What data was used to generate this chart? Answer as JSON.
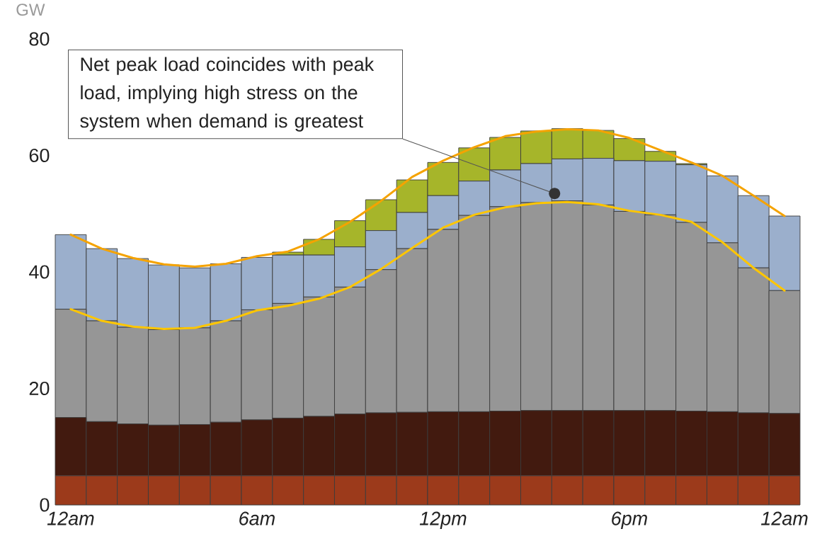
{
  "chart_data": {
    "type": "bar",
    "stacked": true,
    "ylabel": "GW",
    "categories": [
      "12am",
      null,
      null,
      null,
      null,
      null,
      "6am",
      null,
      null,
      null,
      null,
      null,
      "12pm",
      null,
      null,
      null,
      null,
      null,
      "6pm",
      null,
      null,
      null,
      null,
      "12am"
    ],
    "ylim": [
      0,
      80
    ],
    "yticks": [
      0,
      20,
      40,
      60,
      80
    ],
    "series": [
      {
        "color": "#9c3a1b",
        "values": [
          5,
          5,
          5,
          5,
          5,
          5,
          5,
          5,
          5,
          5,
          5,
          5,
          5,
          5,
          5,
          5,
          5,
          5,
          5,
          5,
          5,
          5,
          5,
          5
        ]
      },
      {
        "color": "#421a0f",
        "values": [
          10.0,
          9.3,
          8.9,
          8.7,
          8.8,
          9.2,
          9.6,
          9.9,
          10.2,
          10.6,
          10.8,
          10.9,
          11.0,
          11.0,
          11.1,
          11.2,
          11.2,
          11.2,
          11.2,
          11.2,
          11.1,
          11.0,
          10.8,
          10.7
        ]
      },
      {
        "color": "#969696",
        "values": [
          18.6,
          17.3,
          16.6,
          16.4,
          16.6,
          17.4,
          18.9,
          19.7,
          20.5,
          21.8,
          24.6,
          28.1,
          31.3,
          33.7,
          35.1,
          35.7,
          36.0,
          35.3,
          34.2,
          33.6,
          32.4,
          29.0,
          24.9,
          21.1
        ]
      },
      {
        "color": "#9bafcc",
        "values": [
          12.8,
          12.4,
          11.8,
          11.1,
          10.3,
          9.8,
          9.0,
          8.3,
          7.2,
          6.9,
          6.7,
          6.2,
          5.8,
          5.9,
          6.3,
          6.7,
          7.2,
          8.0,
          8.7,
          9.2,
          9.9,
          11.5,
          12.4,
          12.8
        ]
      },
      {
        "color": "#a6b52a",
        "values": [
          0,
          0,
          0,
          0,
          0,
          0,
          0,
          0.5,
          2.7,
          4.5,
          5.3,
          5.6,
          5.7,
          5.7,
          5.6,
          5.6,
          5.2,
          4.8,
          3.8,
          1.7,
          0.2,
          0,
          0,
          0
        ]
      },
      {
        "type": "line",
        "color": "#f5a300",
        "values": [
          46.4,
          44.0,
          42.4,
          41.3,
          40.9,
          41.4,
          42.7,
          43.5,
          45.6,
          48.6,
          52.2,
          56.3,
          59.1,
          61.4,
          63.3,
          64.1,
          64.5,
          64.3,
          63.0,
          60.9,
          58.8,
          56.5,
          53.1,
          49.6
        ]
      },
      {
        "type": "line",
        "color": "#ffc600",
        "values": [
          33.6,
          31.6,
          30.6,
          30.2,
          30.4,
          31.6,
          33.4,
          34.2,
          35.4,
          37.4,
          40.5,
          44.1,
          47.6,
          49.8,
          51.1,
          51.8,
          52.0,
          51.6,
          50.5,
          49.8,
          48.6,
          45.1,
          40.7,
          36.8
        ]
      }
    ],
    "annotations": [
      "Net peak load coincides with peak load, implying high stress on the system when demand is greatest"
    ]
  }
}
